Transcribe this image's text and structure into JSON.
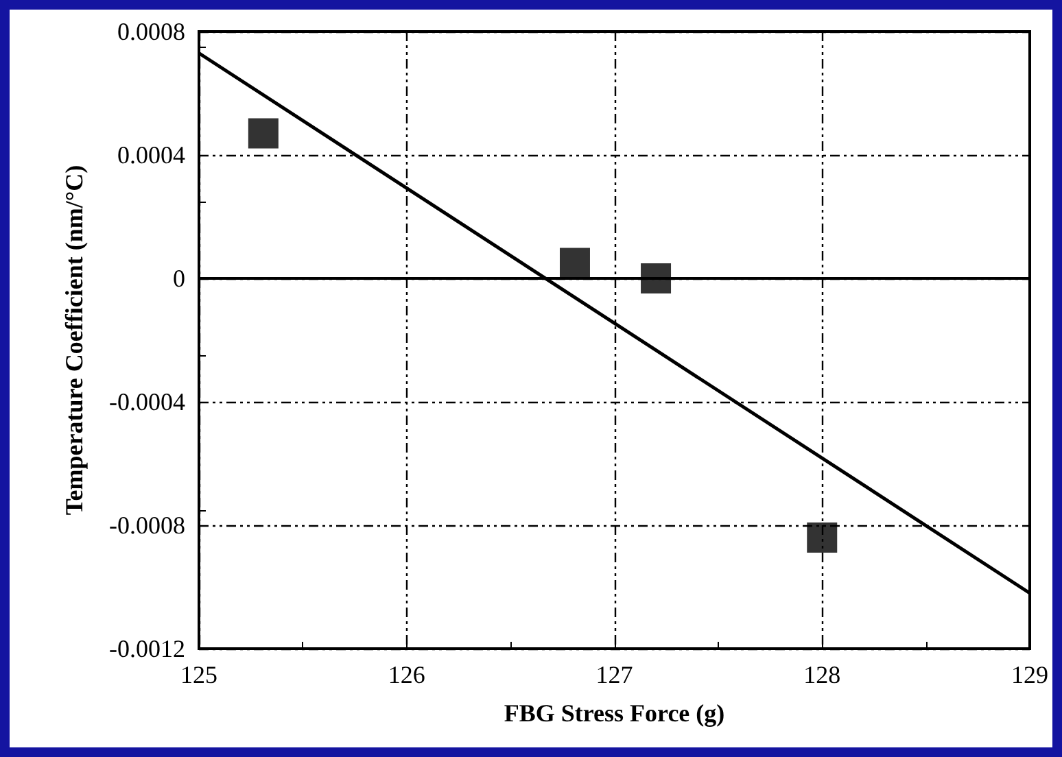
{
  "chart_data": {
    "type": "scatter",
    "xlabel": "FBG Stress Force (g)",
    "ylabel": "Temperature Coefficient (nm/°C)",
    "xlim": [
      125,
      129
    ],
    "xticks": [
      125,
      126,
      127,
      128,
      129
    ],
    "ylim": [
      -0.0012,
      0.0008
    ],
    "yticks": [
      -0.0012,
      -0.0008,
      -0.0004,
      0,
      0.0004,
      0.0008
    ],
    "grid": true,
    "series": [
      {
        "color": "#000000",
        "marker": "square",
        "x": [
          125.31,
          126.81,
          127.2,
          128.0
        ],
        "values": [
          0.00047,
          5e-05,
          0,
          -0.00084
        ]
      },
      {
        "type": "line",
        "color": "#000000",
        "marker": "none",
        "line_style": "solid",
        "x": [
          125,
          129
        ],
        "values": [
          0.00073,
          -0.00102
        ]
      }
    ],
    "ref_lines": [
      {
        "axis": "y",
        "value": 0,
        "color": "#000000",
        "line_style": "solid"
      }
    ]
  }
}
